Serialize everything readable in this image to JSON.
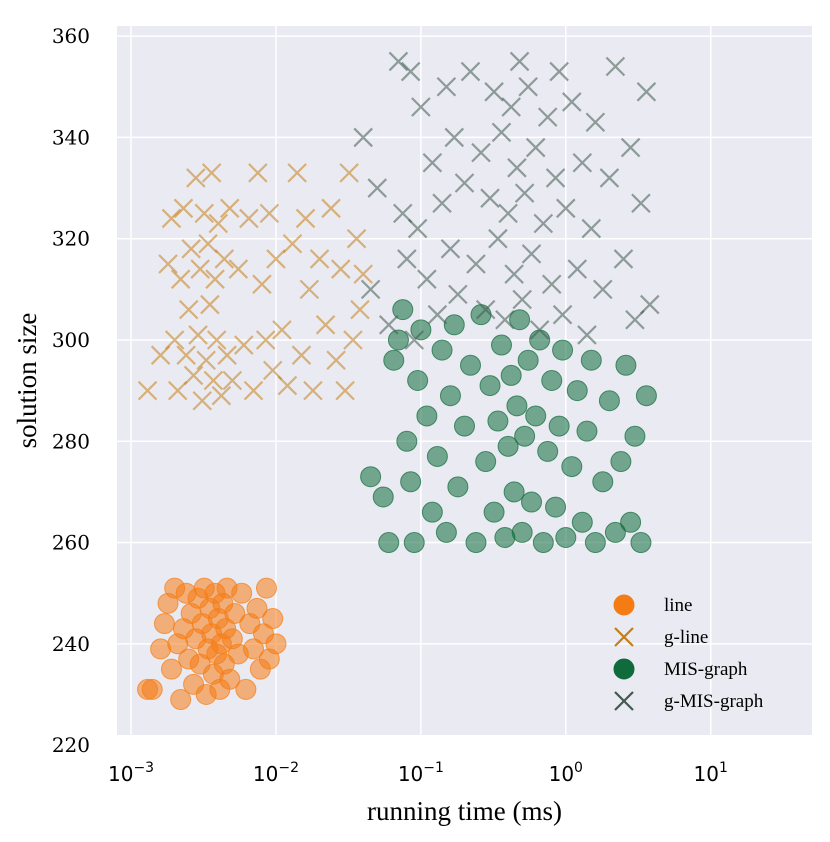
{
  "chart_data": {
    "type": "scatter",
    "title": "",
    "xlabel": "running time (ms)",
    "ylabel": "solution size",
    "xscale": "log",
    "xlim": [
      0.0008,
      50
    ],
    "ylim": [
      222,
      362
    ],
    "x_ticks": [
      {
        "value": 0.001,
        "base": "10",
        "exp": "−3"
      },
      {
        "value": 0.01,
        "base": "10",
        "exp": "−2"
      },
      {
        "value": 0.1,
        "base": "10",
        "exp": "−1"
      },
      {
        "value": 1,
        "base": "10",
        "exp": "0"
      },
      {
        "value": 10,
        "base": "10",
        "exp": "1"
      }
    ],
    "y_ticks": [
      220,
      240,
      260,
      280,
      300,
      320,
      340,
      360
    ],
    "grid": true,
    "legend_position": "bottom-right",
    "series": [
      {
        "name": "line",
        "marker": "circle",
        "color": "#f57c14",
        "points": [
          [
            0.0013,
            231
          ],
          [
            0.0014,
            231
          ],
          [
            0.0016,
            239
          ],
          [
            0.0017,
            244
          ],
          [
            0.0018,
            248
          ],
          [
            0.0019,
            235
          ],
          [
            0.002,
            251
          ],
          [
            0.0021,
            240
          ],
          [
            0.0022,
            229
          ],
          [
            0.0023,
            243
          ],
          [
            0.0024,
            250
          ],
          [
            0.0025,
            237
          ],
          [
            0.0026,
            246
          ],
          [
            0.0027,
            232
          ],
          [
            0.0028,
            241
          ],
          [
            0.0029,
            249
          ],
          [
            0.003,
            236
          ],
          [
            0.0031,
            244
          ],
          [
            0.0032,
            251
          ],
          [
            0.0033,
            230
          ],
          [
            0.0034,
            239
          ],
          [
            0.0035,
            247
          ],
          [
            0.0036,
            242
          ],
          [
            0.0037,
            234
          ],
          [
            0.0038,
            250
          ],
          [
            0.0039,
            238
          ],
          [
            0.004,
            245
          ],
          [
            0.0041,
            231
          ],
          [
            0.0042,
            240
          ],
          [
            0.0043,
            248
          ],
          [
            0.0044,
            236
          ],
          [
            0.0045,
            243
          ],
          [
            0.0046,
            251
          ],
          [
            0.0048,
            233
          ],
          [
            0.005,
            241
          ],
          [
            0.0052,
            246
          ],
          [
            0.0055,
            238
          ],
          [
            0.0058,
            250
          ],
          [
            0.0062,
            231
          ],
          [
            0.0066,
            244
          ],
          [
            0.007,
            239
          ],
          [
            0.0074,
            247
          ],
          [
            0.0078,
            235
          ],
          [
            0.0082,
            242
          ],
          [
            0.0086,
            251
          ],
          [
            0.009,
            237
          ],
          [
            0.0095,
            245
          ],
          [
            0.01,
            240
          ]
        ]
      },
      {
        "name": "g-line",
        "marker": "x",
        "color": "#c47f18",
        "points": [
          [
            0.0013,
            290
          ],
          [
            0.0016,
            297
          ],
          [
            0.0018,
            315
          ],
          [
            0.0019,
            324
          ],
          [
            0.002,
            300
          ],
          [
            0.0021,
            290
          ],
          [
            0.0022,
            312
          ],
          [
            0.0023,
            326
          ],
          [
            0.0024,
            297
          ],
          [
            0.0025,
            306
          ],
          [
            0.0026,
            318
          ],
          [
            0.0027,
            293
          ],
          [
            0.0028,
            332
          ],
          [
            0.0029,
            301
          ],
          [
            0.003,
            314
          ],
          [
            0.0031,
            288
          ],
          [
            0.0032,
            325
          ],
          [
            0.0033,
            296
          ],
          [
            0.0034,
            319
          ],
          [
            0.0035,
            307
          ],
          [
            0.0036,
            333
          ],
          [
            0.0037,
            292
          ],
          [
            0.0038,
            312
          ],
          [
            0.0039,
            300
          ],
          [
            0.004,
            323
          ],
          [
            0.0042,
            289
          ],
          [
            0.0044,
            316
          ],
          [
            0.0046,
            297
          ],
          [
            0.0048,
            326
          ],
          [
            0.005,
            292
          ],
          [
            0.0055,
            314
          ],
          [
            0.006,
            299
          ],
          [
            0.0065,
            324
          ],
          [
            0.007,
            290
          ],
          [
            0.0075,
            333
          ],
          [
            0.008,
            311
          ],
          [
            0.0085,
            300
          ],
          [
            0.009,
            325
          ],
          [
            0.0095,
            294
          ],
          [
            0.01,
            316
          ],
          [
            0.011,
            302
          ],
          [
            0.012,
            291
          ],
          [
            0.013,
            319
          ],
          [
            0.014,
            333
          ],
          [
            0.015,
            297
          ],
          [
            0.016,
            324
          ],
          [
            0.017,
            310
          ],
          [
            0.018,
            290
          ],
          [
            0.02,
            316
          ],
          [
            0.022,
            303
          ],
          [
            0.024,
            326
          ],
          [
            0.026,
            296
          ],
          [
            0.028,
            314
          ],
          [
            0.03,
            290
          ],
          [
            0.032,
            333
          ],
          [
            0.034,
            300
          ],
          [
            0.036,
            320
          ],
          [
            0.038,
            306
          ],
          [
            0.04,
            313
          ]
        ]
      },
      {
        "name": "MIS-graph",
        "marker": "circle",
        "color": "#0f6b3c",
        "points": [
          [
            0.045,
            273
          ],
          [
            0.055,
            269
          ],
          [
            0.06,
            260
          ],
          [
            0.065,
            296
          ],
          [
            0.07,
            300
          ],
          [
            0.075,
            306
          ],
          [
            0.08,
            280
          ],
          [
            0.085,
            272
          ],
          [
            0.09,
            260
          ],
          [
            0.095,
            292
          ],
          [
            0.1,
            302
          ],
          [
            0.11,
            285
          ],
          [
            0.12,
            266
          ],
          [
            0.13,
            277
          ],
          [
            0.14,
            298
          ],
          [
            0.15,
            262
          ],
          [
            0.16,
            289
          ],
          [
            0.17,
            303
          ],
          [
            0.18,
            271
          ],
          [
            0.2,
            283
          ],
          [
            0.22,
            295
          ],
          [
            0.24,
            260
          ],
          [
            0.26,
            305
          ],
          [
            0.28,
            276
          ],
          [
            0.3,
            291
          ],
          [
            0.32,
            266
          ],
          [
            0.34,
            284
          ],
          [
            0.36,
            299
          ],
          [
            0.38,
            261
          ],
          [
            0.4,
            279
          ],
          [
            0.42,
            293
          ],
          [
            0.44,
            270
          ],
          [
            0.46,
            287
          ],
          [
            0.48,
            304
          ],
          [
            0.5,
            262
          ],
          [
            0.52,
            281
          ],
          [
            0.55,
            296
          ],
          [
            0.58,
            268
          ],
          [
            0.62,
            285
          ],
          [
            0.66,
            300
          ],
          [
            0.7,
            260
          ],
          [
            0.75,
            278
          ],
          [
            0.8,
            292
          ],
          [
            0.85,
            267
          ],
          [
            0.9,
            283
          ],
          [
            0.95,
            298
          ],
          [
            1.0,
            261
          ],
          [
            1.1,
            275
          ],
          [
            1.2,
            290
          ],
          [
            1.3,
            264
          ],
          [
            1.4,
            282
          ],
          [
            1.5,
            296
          ],
          [
            1.6,
            260
          ],
          [
            1.8,
            272
          ],
          [
            2.0,
            288
          ],
          [
            2.2,
            262
          ],
          [
            2.4,
            276
          ],
          [
            2.6,
            295
          ],
          [
            2.8,
            264
          ],
          [
            3.0,
            281
          ],
          [
            3.3,
            260
          ],
          [
            3.6,
            289
          ]
        ]
      },
      {
        "name": "g-MIS-graph",
        "marker": "x",
        "color": "#3f5a4e",
        "points": [
          [
            0.04,
            340
          ],
          [
            0.045,
            310
          ],
          [
            0.05,
            330
          ],
          [
            0.06,
            303
          ],
          [
            0.07,
            355
          ],
          [
            0.075,
            325
          ],
          [
            0.08,
            316
          ],
          [
            0.085,
            353
          ],
          [
            0.09,
            300
          ],
          [
            0.095,
            322
          ],
          [
            0.1,
            346
          ],
          [
            0.11,
            312
          ],
          [
            0.12,
            335
          ],
          [
            0.13,
            305
          ],
          [
            0.14,
            327
          ],
          [
            0.15,
            350
          ],
          [
            0.16,
            318
          ],
          [
            0.17,
            340
          ],
          [
            0.18,
            309
          ],
          [
            0.2,
            331
          ],
          [
            0.22,
            353
          ],
          [
            0.24,
            315
          ],
          [
            0.26,
            337
          ],
          [
            0.28,
            306
          ],
          [
            0.3,
            328
          ],
          [
            0.32,
            349
          ],
          [
            0.34,
            320
          ],
          [
            0.36,
            341
          ],
          [
            0.38,
            304
          ],
          [
            0.4,
            325
          ],
          [
            0.42,
            346
          ],
          [
            0.44,
            313
          ],
          [
            0.46,
            334
          ],
          [
            0.48,
            355
          ],
          [
            0.5,
            308
          ],
          [
            0.52,
            329
          ],
          [
            0.55,
            350
          ],
          [
            0.58,
            317
          ],
          [
            0.62,
            338
          ],
          [
            0.66,
            302
          ],
          [
            0.7,
            323
          ],
          [
            0.75,
            344
          ],
          [
            0.8,
            311
          ],
          [
            0.85,
            332
          ],
          [
            0.9,
            353
          ],
          [
            0.95,
            305
          ],
          [
            1.0,
            326
          ],
          [
            1.1,
            347
          ],
          [
            1.2,
            314
          ],
          [
            1.3,
            335
          ],
          [
            1.4,
            301
          ],
          [
            1.5,
            322
          ],
          [
            1.6,
            343
          ],
          [
            1.8,
            310
          ],
          [
            2.0,
            332
          ],
          [
            2.2,
            354
          ],
          [
            2.5,
            316
          ],
          [
            2.8,
            338
          ],
          [
            3.0,
            304
          ],
          [
            3.3,
            327
          ],
          [
            3.6,
            349
          ],
          [
            3.8,
            307
          ]
        ]
      }
    ]
  }
}
